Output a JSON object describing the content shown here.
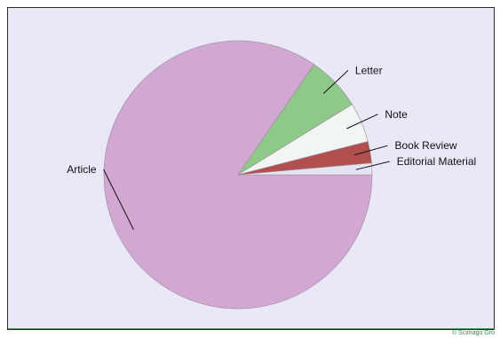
{
  "chart_data": {
    "type": "pie",
    "categories": [
      "Article",
      "Letter",
      "Note",
      "Book Review",
      "Editorial Material"
    ],
    "values": [
      84.6,
      6.6,
      4.8,
      2.6,
      1.4
    ],
    "colors": [
      "#d2a8d2",
      "#8fc98a",
      "#f2f6f2",
      "#b25050",
      "#e4e4f0"
    ],
    "start_angle_deg": 0,
    "direction": "clockwise",
    "labels_outside": true
  },
  "colors": {
    "background": "#e8e8f7",
    "border": "#2a2a2a",
    "footer_line": "#3a9a48"
  },
  "footer": {
    "credit": "© Scimago Gro"
  }
}
